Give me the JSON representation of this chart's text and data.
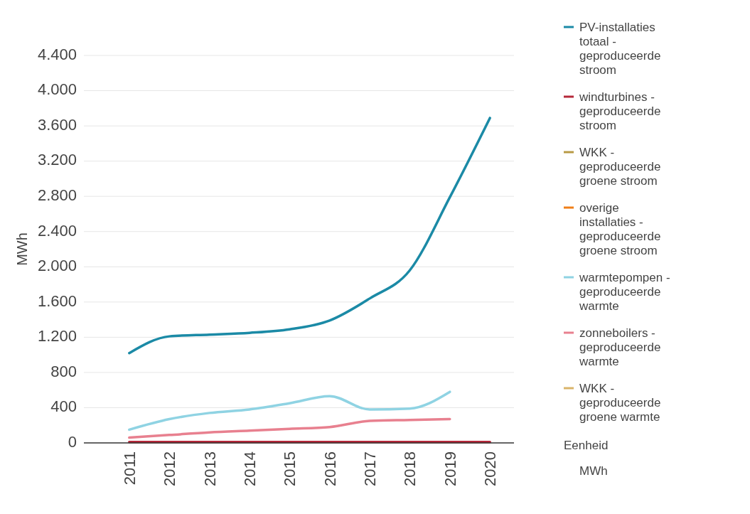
{
  "chart_data": {
    "type": "line",
    "ylabel": "MWh",
    "categories": [
      "2011",
      "2012",
      "2013",
      "2014",
      "2015",
      "2016",
      "2017",
      "2018",
      "2019",
      "2020"
    ],
    "series": [
      {
        "name": "PV-installaties totaal - geproduceerde stroom",
        "color": "#1b8aa6",
        "values": [
          1020,
          1210,
          1230,
          1250,
          1290,
          1390,
          1640,
          1960,
          2790,
          3690
        ]
      },
      {
        "name": "windturbines - geproduceerde stroom",
        "color": "#b5283a",
        "values": [
          10,
          10,
          10,
          10,
          10,
          10,
          10,
          10,
          10,
          10
        ]
      },
      {
        "name": "WKK - geproduceerde groene stroom",
        "color": "#b89a45",
        "values": [
          null,
          null,
          null,
          null,
          null,
          null,
          null,
          null,
          null,
          null
        ]
      },
      {
        "name": "overige installaties - geproduceerde groene stroom",
        "color": "#f07f18",
        "values": [
          null,
          null,
          null,
          null,
          null,
          null,
          null,
          null,
          null,
          null
        ]
      },
      {
        "name": "warmtepompen - geproduceerde warmte",
        "color": "#8fd3e3",
        "values": [
          150,
          270,
          340,
          380,
          450,
          530,
          380,
          390,
          580,
          null
        ]
      },
      {
        "name": "zonneboilers - geproduceerde warmte",
        "color": "#e8808f",
        "values": [
          60,
          90,
          120,
          140,
          160,
          180,
          250,
          260,
          270,
          null
        ]
      },
      {
        "name": "WKK - geproduceerde groene warmte",
        "color": "#d9b46a",
        "values": [
          null,
          null,
          null,
          null,
          null,
          null,
          null,
          null,
          null,
          null
        ]
      }
    ],
    "ylim": [
      0,
      4400
    ],
    "yticks": [
      {
        "value": 0,
        "label": "0"
      },
      {
        "value": 400,
        "label": "400"
      },
      {
        "value": 800,
        "label": "800"
      },
      {
        "value": 1200,
        "label": "1.200"
      },
      {
        "value": 1600,
        "label": "1.600"
      },
      {
        "value": 2000,
        "label": "2.000"
      },
      {
        "value": 2400,
        "label": "2.400"
      },
      {
        "value": 2800,
        "label": "2.800"
      },
      {
        "value": 3200,
        "label": "3.200"
      },
      {
        "value": 3600,
        "label": "3.600"
      },
      {
        "value": 4000,
        "label": "4.000"
      },
      {
        "value": 4400,
        "label": "4.400"
      }
    ],
    "grid": "y",
    "legend": "right",
    "marker": "none",
    "line_style": "solid",
    "annotations": [
      "Eenheid",
      "MWh"
    ]
  }
}
